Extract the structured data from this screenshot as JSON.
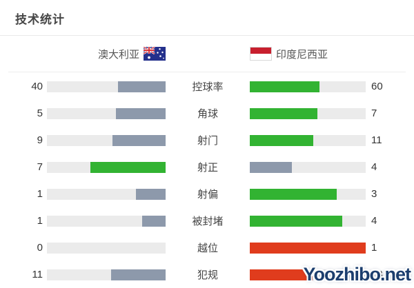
{
  "title": "技术统计",
  "teams": {
    "home": {
      "name": "澳大利亚",
      "flag": "australia-flag"
    },
    "away": {
      "name": "印度尼西亚",
      "flag": "indonesia-flag"
    }
  },
  "colors": {
    "green": "#32b332",
    "slate": "#8d99ab",
    "red": "#e03c1d",
    "none": "transparent",
    "track": "#ebebeb",
    "flag_red": "#c81f2e"
  },
  "watermark": "Yoozhibo.net",
  "chart_data": {
    "type": "bar",
    "title": "技术统计",
    "legend": [
      "澳大利亚",
      "印度尼西亚"
    ],
    "categories": [
      "控球率",
      "角球",
      "射门",
      "射正",
      "射偏",
      "被封堵",
      "越位",
      "犯规"
    ],
    "series": [
      {
        "name": "澳大利亚",
        "values": [
          40,
          5,
          9,
          7,
          1,
          1,
          0,
          11
        ]
      },
      {
        "name": "印度尼西亚",
        "values": [
          60,
          7,
          11,
          4,
          3,
          4,
          1,
          13
        ]
      }
    ],
    "layout": "mirrored horizontal bars, home bars grow right-to-left, away bars grow left-to-right, higher value highlighted green (red for negative stats 越位/犯规), lower value slate gray",
    "rows": [
      {
        "label": "控球率",
        "home": {
          "value": "40",
          "pct": 40,
          "color": "slate"
        },
        "away": {
          "value": "60",
          "pct": 60,
          "color": "green"
        }
      },
      {
        "label": "角球",
        "home": {
          "value": "5",
          "pct": 41.7,
          "color": "slate"
        },
        "away": {
          "value": "7",
          "pct": 58.3,
          "color": "green"
        }
      },
      {
        "label": "射门",
        "home": {
          "value": "9",
          "pct": 45,
          "color": "slate"
        },
        "away": {
          "value": "11",
          "pct": 55,
          "color": "green"
        }
      },
      {
        "label": "射正",
        "home": {
          "value": "7",
          "pct": 63.6,
          "color": "green"
        },
        "away": {
          "value": "4",
          "pct": 36.4,
          "color": "slate"
        }
      },
      {
        "label": "射偏",
        "home": {
          "value": "1",
          "pct": 25,
          "color": "slate"
        },
        "away": {
          "value": "3",
          "pct": 75,
          "color": "green"
        }
      },
      {
        "label": "被封堵",
        "home": {
          "value": "1",
          "pct": 20,
          "color": "slate"
        },
        "away": {
          "value": "4",
          "pct": 80,
          "color": "green"
        }
      },
      {
        "label": "越位",
        "home": {
          "value": "0",
          "pct": 0,
          "color": "none"
        },
        "away": {
          "value": "1",
          "pct": 100,
          "color": "red"
        }
      },
      {
        "label": "犯规",
        "home": {
          "value": "11",
          "pct": 45.8,
          "color": "slate"
        },
        "away": {
          "value": "13",
          "pct": 54.2,
          "color": "red"
        }
      }
    ]
  }
}
